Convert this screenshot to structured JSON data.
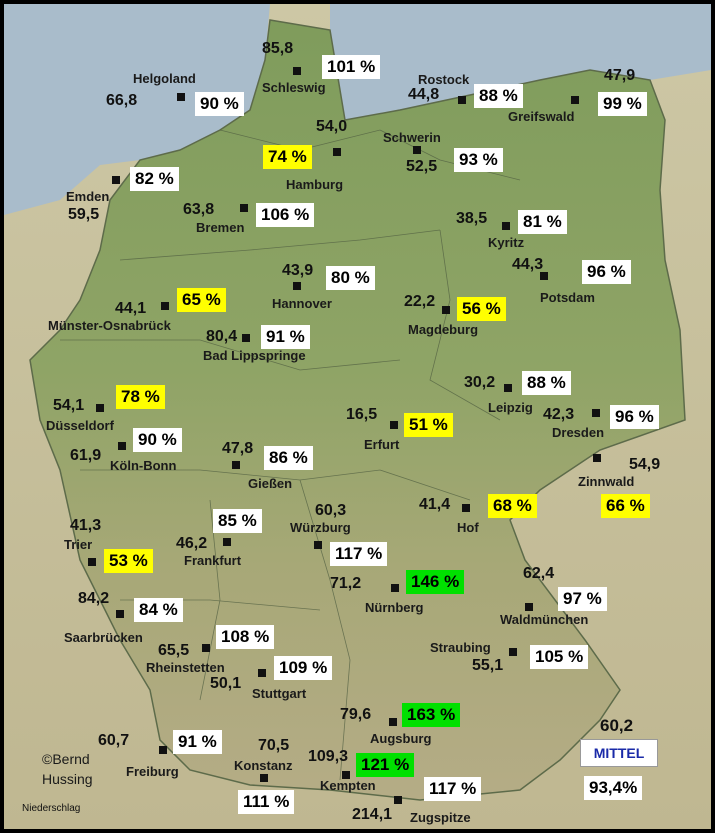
{
  "colors": {
    "white": "#ffffff",
    "yellow": "#ffff00",
    "green": "#00e000"
  },
  "stations": [
    {
      "id": "schleswig",
      "name": "Schleswig",
      "value": "85,8",
      "percent": "101 %",
      "color": "white"
    },
    {
      "id": "helgoland",
      "name": "Helgoland",
      "value": "66,8",
      "percent": "90 %",
      "color": "white"
    },
    {
      "id": "rostock",
      "name": "Rostock",
      "value": "44,8",
      "percent": "88 %",
      "color": "white"
    },
    {
      "id": "greifswald",
      "name": "Greifswald",
      "value": "47,9",
      "percent": "99 %",
      "color": "white"
    },
    {
      "id": "hamburg",
      "name": "Hamburg",
      "value": "54,0",
      "percent": "74 %",
      "color": "yellow"
    },
    {
      "id": "schwerin",
      "name": "Schwerin",
      "value": "52,5",
      "percent": "93 %",
      "color": "white"
    },
    {
      "id": "emden",
      "name": "Emden",
      "value": "59,5",
      "percent": "82 %",
      "color": "white"
    },
    {
      "id": "bremen",
      "name": "Bremen",
      "value": "63,8",
      "percent": "106 %",
      "color": "white"
    },
    {
      "id": "kyritz",
      "name": "Kyritz",
      "value": "38,5",
      "percent": "81 %",
      "color": "white"
    },
    {
      "id": "hannover",
      "name": "Hannover",
      "value": "43,9",
      "percent": "80 %",
      "color": "white"
    },
    {
      "id": "potsdam",
      "name": "Potsdam",
      "value": "44,3",
      "percent": "96 %",
      "color": "white"
    },
    {
      "id": "muenster",
      "name": "Münster-Osnabrück",
      "value": "44,1",
      "percent": "65 %",
      "color": "yellow"
    },
    {
      "id": "magdeburg",
      "name": "Magdeburg",
      "value": "22,2",
      "percent": "56 %",
      "color": "yellow"
    },
    {
      "id": "badlipp",
      "name": "Bad Lippspringe",
      "value": "80,4",
      "percent": "91 %",
      "color": "white"
    },
    {
      "id": "duesseldorf",
      "name": "Düsseldorf",
      "value": "54,1",
      "percent": "78 %",
      "color": "yellow"
    },
    {
      "id": "leipzig",
      "name": "Leipzig",
      "value": "30,2",
      "percent": "88 %",
      "color": "white"
    },
    {
      "id": "erfurt",
      "name": "Erfurt",
      "value": "16,5",
      "percent": "51 %",
      "color": "yellow"
    },
    {
      "id": "dresden",
      "name": "Dresden",
      "value": "42,3",
      "percent": "96 %",
      "color": "white"
    },
    {
      "id": "koeln",
      "name": "Köln-Bonn",
      "value": "61,9",
      "percent": "90 %",
      "color": "white"
    },
    {
      "id": "giessen",
      "name": "Gießen",
      "value": "47,8",
      "percent": "86 %",
      "color": "white"
    },
    {
      "id": "zinnwald",
      "name": "Zinnwald",
      "value": "54,9",
      "percent": "66 %",
      "color": "yellow"
    },
    {
      "id": "hof",
      "name": "Hof",
      "value": "41,4",
      "percent": "68 %",
      "color": "yellow"
    },
    {
      "id": "trier",
      "name": "Trier",
      "value": "41,3",
      "percent": "53 %",
      "color": "yellow"
    },
    {
      "id": "frankfurt",
      "name": "Frankfurt",
      "value": "46,2",
      "percent": "85 %",
      "color": "white"
    },
    {
      "id": "wuerzburg",
      "name": "Würzburg",
      "value": "60,3",
      "percent": "117 %",
      "color": "white"
    },
    {
      "id": "nuernberg",
      "name": "Nürnberg",
      "value": "71,2",
      "percent": "146 %",
      "color": "green"
    },
    {
      "id": "waldmuenchen",
      "name": "Waldmünchen",
      "value": "62,4",
      "percent": "97 %",
      "color": "white"
    },
    {
      "id": "saarbruecken",
      "name": "Saarbrücken",
      "value": "84,2",
      "percent": "84 %",
      "color": "white"
    },
    {
      "id": "rheinstetten",
      "name": "Rheinstetten",
      "value": "65,5",
      "percent": "108 %",
      "color": "white"
    },
    {
      "id": "straubing",
      "name": "Straubing",
      "value": "55,1",
      "percent": "105 %",
      "color": "white"
    },
    {
      "id": "stuttgart",
      "name": "Stuttgart",
      "value": "50,1",
      "percent": "109 %",
      "color": "white"
    },
    {
      "id": "augsburg",
      "name": "Augsburg",
      "value": "79,6",
      "percent": "163 %",
      "color": "green"
    },
    {
      "id": "freiburg",
      "name": "Freiburg",
      "value": "60,7",
      "percent": "91 %",
      "color": "white"
    },
    {
      "id": "konstanz",
      "name": "Konstanz",
      "value": "70,5",
      "percent": "111 %",
      "color": "white"
    },
    {
      "id": "kempten",
      "name": "Kempten",
      "value": "109,3",
      "percent": "121 %",
      "color": "green"
    },
    {
      "id": "zugspitze",
      "name": "Zugspitze",
      "value": "214,1",
      "percent": "117 %",
      "color": "white"
    }
  ],
  "legend": {
    "label": "MITTEL",
    "value": "60,2",
    "percent": "93,4%"
  },
  "credit": {
    "line1": "©Bernd",
    "line2": "Hussing"
  },
  "footer": {
    "caption": "Niederschlag"
  }
}
